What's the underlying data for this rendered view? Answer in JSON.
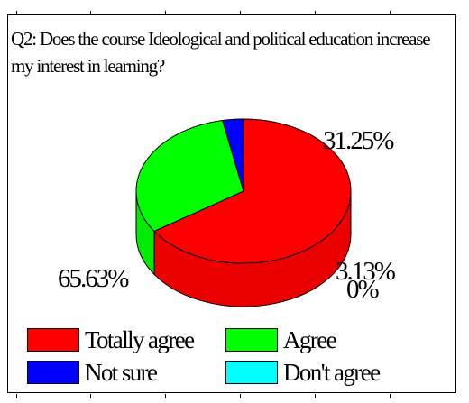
{
  "chart_data": {
    "type": "pie",
    "title": "Q2: Does the course Ideological and political education increase my interest in learning?",
    "slices": [
      {
        "label": "Totally agree",
        "value": 65.63,
        "display": "65.63%",
        "color": "#ff0000"
      },
      {
        "label": "Agree",
        "value": 31.25,
        "display": "31.25%",
        "color": "#00ff00"
      },
      {
        "label": "Not sure",
        "value": 3.13,
        "display": "3.13%",
        "color": "#0000ff"
      },
      {
        "label": "Don't agree",
        "value": 0,
        "display": "0%",
        "color": "#00ffff"
      }
    ],
    "legend_placement": "bottom",
    "style": "3d"
  }
}
